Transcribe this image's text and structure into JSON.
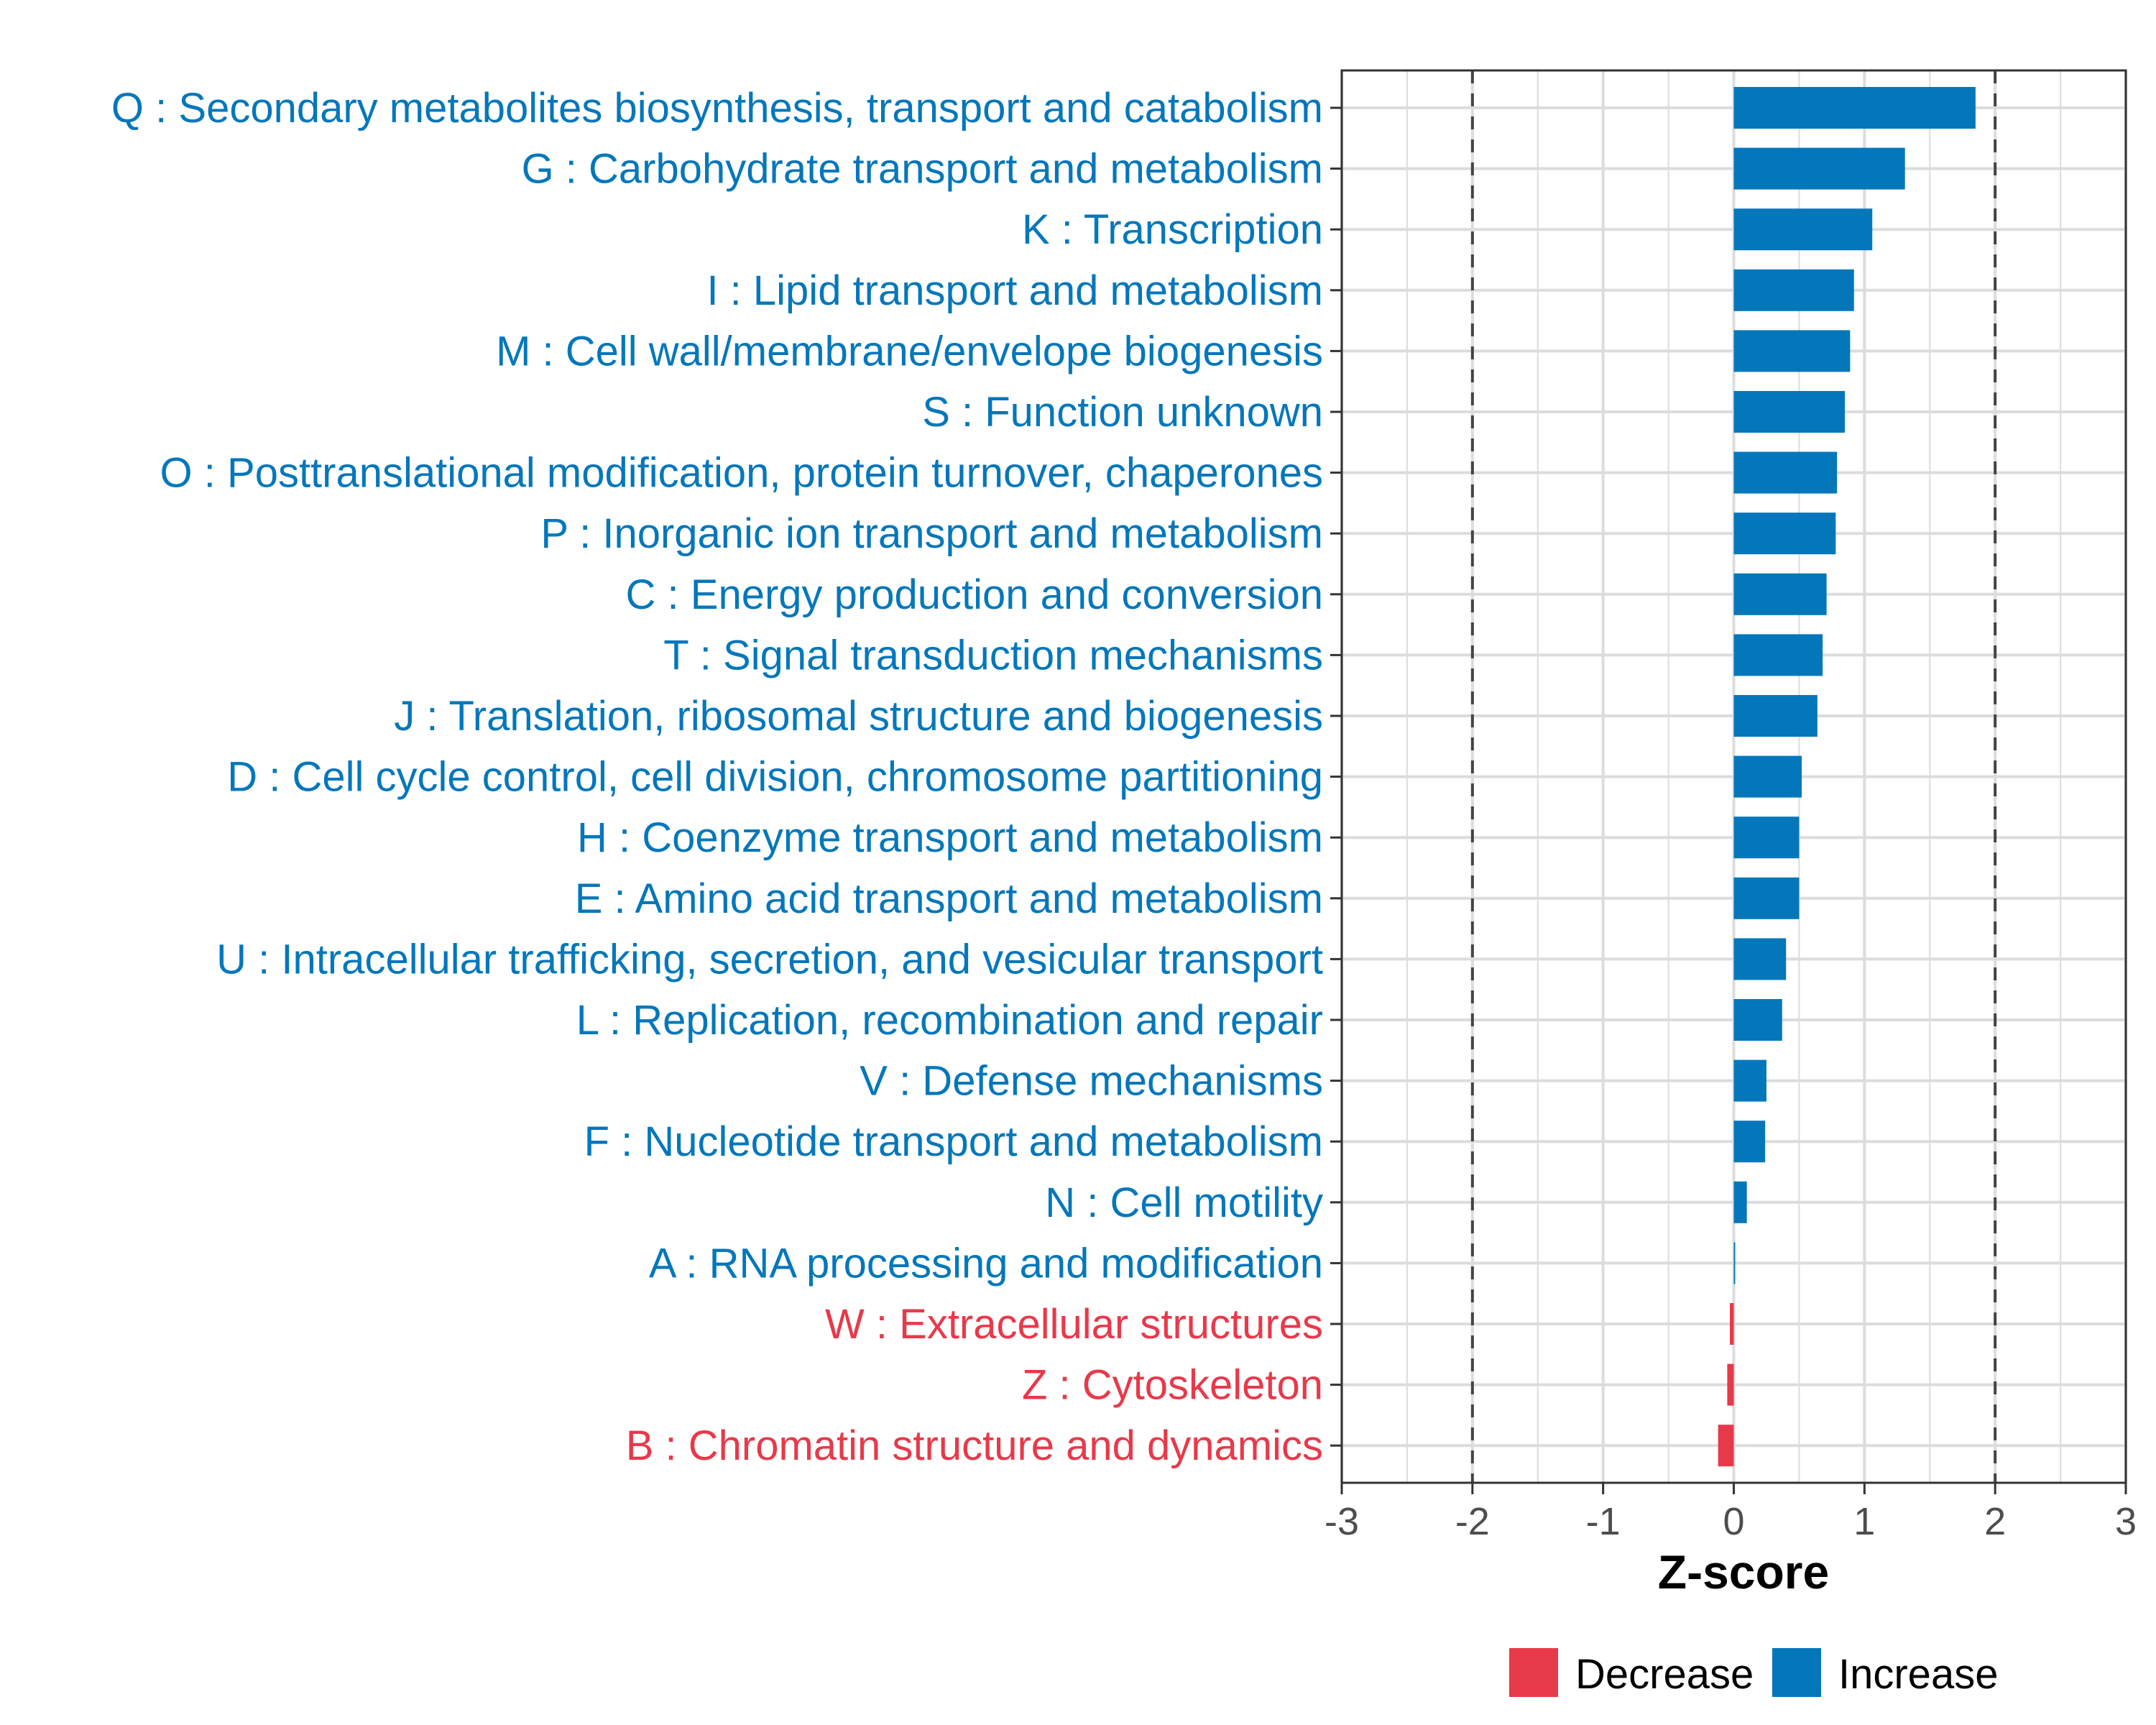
{
  "chart_data": {
    "type": "bar",
    "orientation": "horizontal",
    "xlabel": "Z-score",
    "ylabel": "",
    "xlim": [
      -3,
      3
    ],
    "xticks": [
      "-3",
      "-2",
      "-1",
      "0",
      "1",
      "2",
      "3"
    ],
    "threshold_lines": [
      -2,
      2
    ],
    "grid": true,
    "legend_position": "bottom",
    "colors": {
      "Decrease": "#e8394a",
      "Increase": "#0477bb"
    },
    "categories": [
      "Q : Secondary metabolites biosynthesis, transport and catabolism",
      "G : Carbohydrate transport and metabolism",
      "K : Transcription",
      "I : Lipid transport and metabolism",
      "M : Cell wall/membrane/envelope biogenesis",
      "S : Function unknown",
      "O : Posttranslational modification, protein turnover, chaperones",
      "P : Inorganic ion transport and metabolism",
      "C : Energy production and conversion",
      "T : Signal transduction mechanisms",
      "J : Translation, ribosomal structure and biogenesis",
      "D : Cell cycle control, cell division, chromosome partitioning",
      "H : Coenzyme transport and metabolism",
      "E : Amino acid transport and metabolism",
      "U : Intracellular trafficking, secretion, and vesicular transport",
      "L : Replication, recombination and repair",
      "V : Defense mechanisms",
      "F : Nucleotide transport and metabolism",
      "N : Cell motility",
      "A : RNA processing and modification",
      "W : Extracellular structures",
      "Z : Cytoskeleton",
      "B : Chromatin structure and dynamics"
    ],
    "values": [
      1.85,
      1.31,
      1.06,
      0.92,
      0.89,
      0.85,
      0.79,
      0.78,
      0.71,
      0.68,
      0.64,
      0.52,
      0.5,
      0.5,
      0.4,
      0.37,
      0.25,
      0.24,
      0.1,
      0.01,
      -0.03,
      -0.05,
      -0.12
    ],
    "direction": [
      "Increase",
      "Increase",
      "Increase",
      "Increase",
      "Increase",
      "Increase",
      "Increase",
      "Increase",
      "Increase",
      "Increase",
      "Increase",
      "Increase",
      "Increase",
      "Increase",
      "Increase",
      "Increase",
      "Increase",
      "Increase",
      "Increase",
      "Increase",
      "Decrease",
      "Decrease",
      "Decrease"
    ],
    "legend": [
      "Decrease",
      "Increase"
    ]
  }
}
